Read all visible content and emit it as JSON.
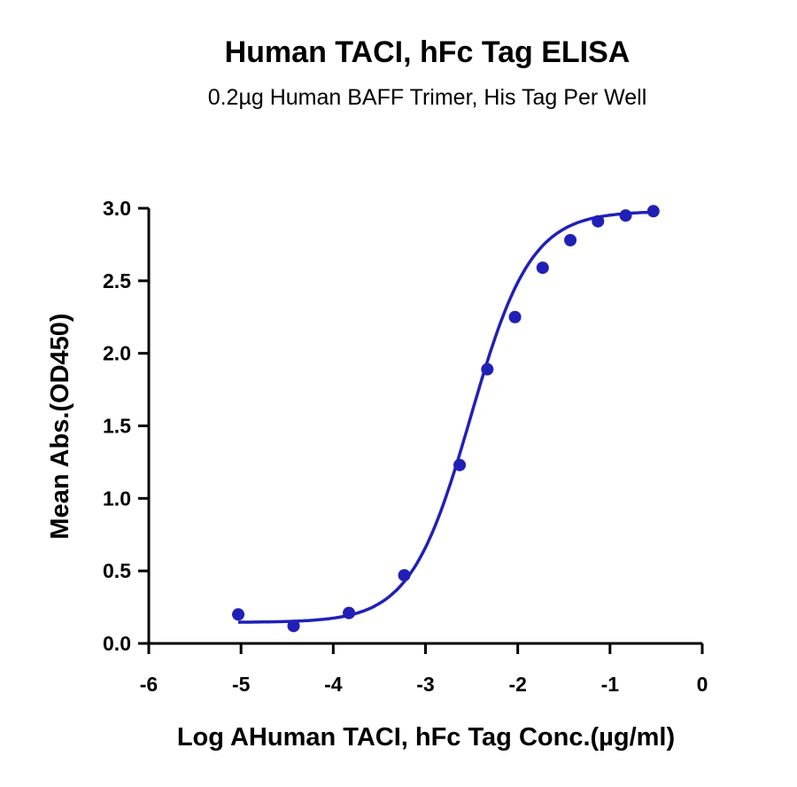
{
  "chart_data": {
    "type": "scatter",
    "title": "Human TACI, hFc Tag ELISA",
    "subtitle": "0.2µg Human BAFF Trimer, His Tag Per Well",
    "xlabel": "Log AHuman TACI, hFc Tag Conc.(µg/ml)",
    "ylabel": "Mean Abs.(OD450)",
    "xlim": [
      -6,
      0
    ],
    "ylim": [
      0,
      3.0
    ],
    "x_ticks": [
      "-6",
      "-5",
      "-4",
      "-3",
      "-2",
      "-1",
      "0"
    ],
    "y_ticks": [
      "0.0",
      "0.5",
      "1.0",
      "1.5",
      "2.0",
      "2.5",
      "3.0"
    ],
    "grid": false,
    "legend": "none",
    "series": [
      {
        "color": "#2020b8",
        "points": [
          {
            "x": -5.03,
            "y": 0.2
          },
          {
            "x": -4.43,
            "y": 0.12
          },
          {
            "x": -3.83,
            "y": 0.21
          },
          {
            "x": -3.23,
            "y": 0.47
          },
          {
            "x": -2.63,
            "y": 1.23
          },
          {
            "x": -2.33,
            "y": 1.89
          },
          {
            "x": -2.03,
            "y": 2.25
          },
          {
            "x": -1.73,
            "y": 2.59
          },
          {
            "x": -1.43,
            "y": 2.78
          },
          {
            "x": -1.13,
            "y": 2.91
          },
          {
            "x": -0.83,
            "y": 2.95
          },
          {
            "x": -0.53,
            "y": 2.98
          }
        ],
        "fit": {
          "model": "4PL",
          "bottom": 0.145,
          "top": 2.98,
          "log_ec50": -2.51,
          "hill": 1.33,
          "x_range": [
            -5.03,
            -0.53
          ]
        }
      }
    ]
  }
}
